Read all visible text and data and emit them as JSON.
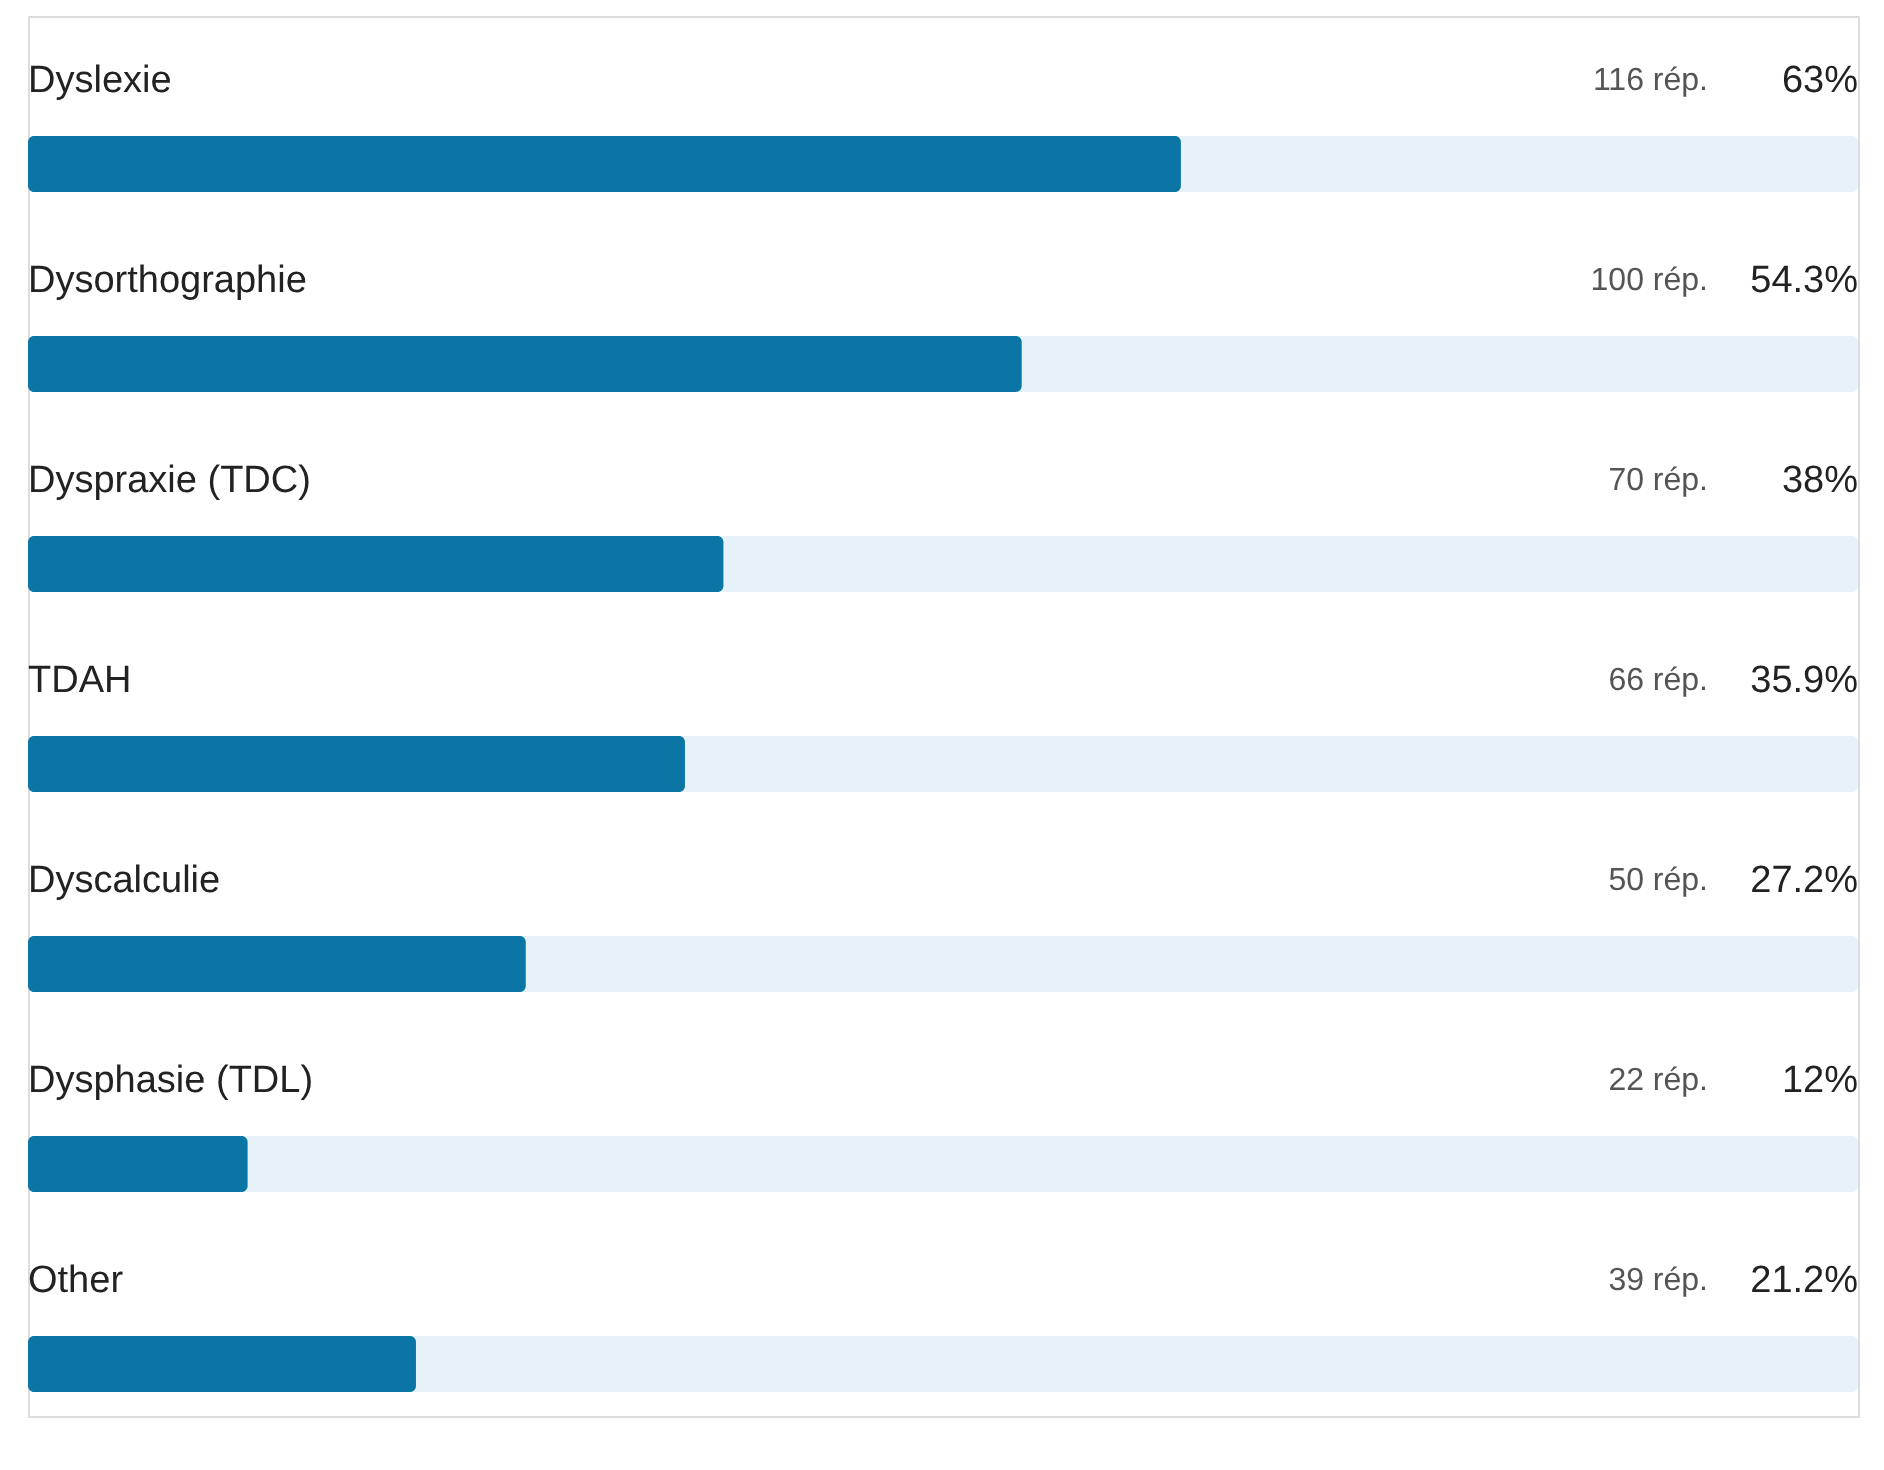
{
  "chart_data": {
    "type": "bar",
    "orientation": "horizontal",
    "categories": [
      "Dyslexie",
      "Dysorthographie",
      "Dyspraxie (TDC)",
      "TDAH",
      "Dyscalculie",
      "Dysphasie (TDL)",
      "Other"
    ],
    "values": [
      63,
      54.3,
      38,
      35.9,
      27.2,
      12,
      21.2
    ],
    "value_labels": [
      "63%",
      "54.3%",
      "38%",
      "35.9%",
      "27.2%",
      "12%",
      "21.2%"
    ],
    "color": "#0b76a5",
    "xlim": [
      0,
      100
    ],
    "tick_labels": false,
    "grid": false,
    "annotations": [
      "116 rép.",
      "100 rép.",
      "70 rép.",
      "66 rép.",
      "50 rép.",
      "22 rép.",
      "39 rép."
    ]
  }
}
